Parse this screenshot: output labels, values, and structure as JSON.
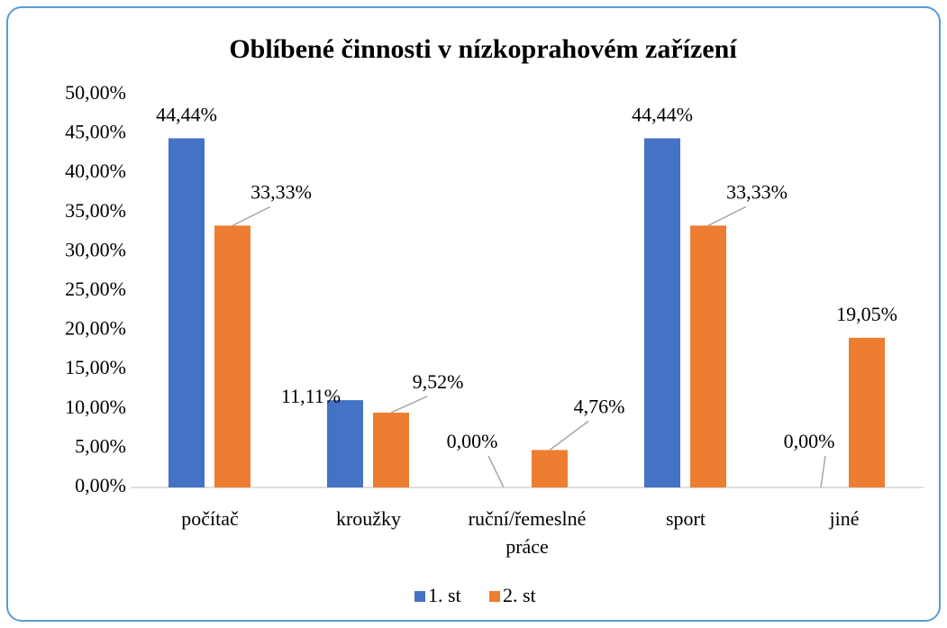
{
  "chart_data": {
    "type": "bar",
    "title": "Oblíbené činnosti v nízkoprahovém zařízení",
    "categories": [
      "počítač",
      "kroužky",
      "ruční/řemeslné práce",
      "sport",
      "jiné"
    ],
    "series": [
      {
        "name": "1. st",
        "color": "#4472c4",
        "values": [
          44.44,
          11.11,
          0,
          44.44,
          0
        ],
        "value_labels": [
          "44,44%",
          "11,11%",
          "0,00%",
          "44,44%",
          "0,00%"
        ]
      },
      {
        "name": "2. st",
        "color": "#ed7d31",
        "values": [
          33.33,
          9.52,
          4.76,
          33.33,
          19.05
        ],
        "value_labels": [
          "33,33%",
          "9,52%",
          "4,76%",
          "33,33%",
          "19,05%"
        ]
      }
    ],
    "ylim": [
      0,
      50
    ],
    "yticks": [
      {
        "value": 0,
        "label": "0,00%"
      },
      {
        "value": 5,
        "label": "5,00%"
      },
      {
        "value": 10,
        "label": "10,00%"
      },
      {
        "value": 15,
        "label": "15,00%"
      },
      {
        "value": 20,
        "label": "20,00%"
      },
      {
        "value": 25,
        "label": "25,00%"
      },
      {
        "value": 30,
        "label": "30,00%"
      },
      {
        "value": 35,
        "label": "35,00%"
      },
      {
        "value": 40,
        "label": "40,00%"
      },
      {
        "value": 45,
        "label": "45,00%"
      },
      {
        "value": 50,
        "label": "50,00%"
      }
    ],
    "legend": "bottom"
  }
}
